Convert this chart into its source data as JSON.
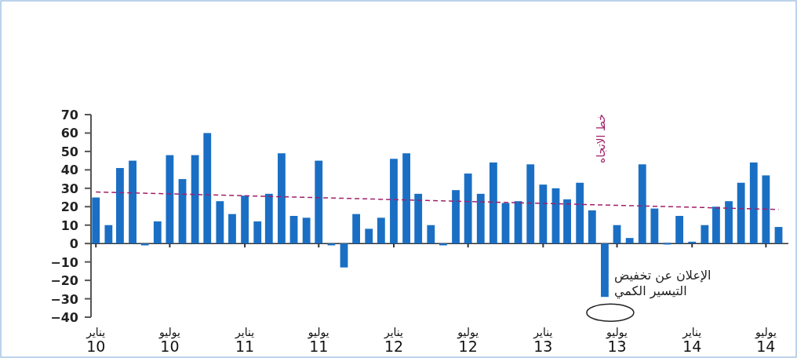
{
  "chart_data": {
    "type": "bar",
    "x": [
      "2010-01",
      "2010-02",
      "2010-03",
      "2010-04",
      "2010-05",
      "2010-06",
      "2010-07",
      "2010-08",
      "2010-09",
      "2010-10",
      "2010-11",
      "2010-12",
      "2011-01",
      "2011-02",
      "2011-03",
      "2011-04",
      "2011-05",
      "2011-06",
      "2011-07",
      "2011-08",
      "2011-09",
      "2011-10",
      "2011-11",
      "2011-12",
      "2012-01",
      "2012-02",
      "2012-03",
      "2012-04",
      "2012-05",
      "2012-06",
      "2012-07",
      "2012-08",
      "2012-09",
      "2012-10",
      "2012-11",
      "2012-12",
      "2013-01",
      "2013-02",
      "2013-03",
      "2013-04",
      "2013-05",
      "2013-06",
      "2013-07",
      "2013-08",
      "2013-09",
      "2013-10",
      "2013-11",
      "2013-12",
      "2014-01",
      "2014-02",
      "2014-03",
      "2014-04",
      "2014-05",
      "2014-06",
      "2014-07",
      "2014-08"
    ],
    "series": [
      {
        "color": "#1a6fc4",
        "values": [
          25,
          10,
          41,
          45,
          -1,
          12,
          48,
          35,
          48,
          60,
          23,
          16,
          26,
          12,
          27,
          49,
          15,
          14,
          45,
          -1,
          -13,
          16,
          8,
          14,
          46,
          49,
          27,
          10,
          -1,
          29,
          38,
          27,
          44,
          22,
          23,
          43,
          32,
          30,
          24,
          33,
          18,
          -29,
          10,
          3,
          43,
          19,
          0.3,
          15,
          1,
          10,
          20,
          23,
          33,
          44,
          37,
          9
        ]
      },
      {
        "type": "line",
        "name": "خط الاتجاه",
        "color": "#a0206a",
        "line_style": "dashed",
        "x": [
          "2010-01",
          "2014-08"
        ],
        "values": [
          28,
          18.5
        ]
      }
    ],
    "xlim": [
      "2009-12-20",
      "2014-08-25"
    ],
    "xticks": [
      {
        "value": "2010-01",
        "label": "يناير\n10"
      },
      {
        "value": "2010-07",
        "label": "يوليو\n10"
      },
      {
        "value": "2011-01",
        "label": "يناير\n11"
      },
      {
        "value": "2011-07",
        "label": "يوليو\n11"
      },
      {
        "value": "2012-01",
        "label": "يناير\n12"
      },
      {
        "value": "2012-07",
        "label": "يوليو\n12"
      },
      {
        "value": "2013-01",
        "label": "يناير\n13"
      },
      {
        "value": "2013-07",
        "label": "يوليو\n13"
      },
      {
        "value": "2014-01",
        "label": "يناير\n14"
      },
      {
        "value": "2014-07",
        "label": "يوليو\n14"
      }
    ],
    "ylim": [
      -40,
      70
    ],
    "yticks": [
      -40,
      -30,
      -20,
      -10,
      0,
      10,
      20,
      30,
      40,
      50,
      60,
      70
    ],
    "annotations": [
      {
        "text": "الإعلان عن تخفيض\nالتيسير الكمي",
        "x": "2013-06",
        "y": -29
      }
    ]
  }
}
